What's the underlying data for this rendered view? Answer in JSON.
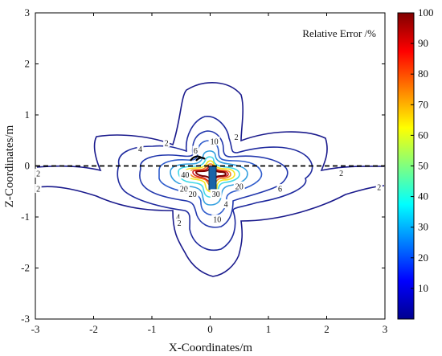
{
  "chart_data": {
    "type": "contour",
    "annotation": "Relative Error /%",
    "xlabel": "X-Coordinates/m",
    "ylabel": "Z-Coordinates/m",
    "xlim": [
      -3,
      3
    ],
    "ylim": [
      -3,
      3
    ],
    "xticks": [
      "-3",
      "-2",
      "-1",
      "0",
      "1",
      "2",
      "3"
    ],
    "yticks": [
      "3",
      "2",
      "1",
      "0",
      "-1",
      "-2",
      "-3"
    ],
    "colorbar": {
      "range": [
        0,
        100
      ],
      "ticks": [
        "100",
        "90",
        "80",
        "70",
        "60",
        "50",
        "40",
        "30",
        "20",
        "10"
      ]
    },
    "contour_levels": [
      {
        "level": 2,
        "color": "#1a1a8c"
      },
      {
        "level": 4,
        "color": "#1f2a9e"
      },
      {
        "level": 6,
        "color": "#2338ad"
      },
      {
        "level": 10,
        "color": "#2f5ccc"
      },
      {
        "level": 20,
        "color": "#35a0e0"
      },
      {
        "level": 30,
        "color": "#40d8e8"
      },
      {
        "level": 40,
        "color": "#f2e620"
      },
      {
        "level": 60,
        "color": "#f28a1a"
      },
      {
        "level": 80,
        "color": "#d61e1e"
      },
      {
        "level": 100,
        "color": "#7a0000"
      }
    ],
    "contour_labels": [
      {
        "text": "2",
        "x": -2.95,
        "z": -0.15
      },
      {
        "text": "2",
        "x": -2.95,
        "z": -0.45
      },
      {
        "text": "2",
        "x": -0.75,
        "z": 0.45
      },
      {
        "text": "2",
        "x": 0.45,
        "z": 0.57
      },
      {
        "text": "4",
        "x": -1.2,
        "z": 0.33
      },
      {
        "text": "10",
        "x": 0.07,
        "z": 0.48
      },
      {
        "text": "6",
        "x": -0.25,
        "z": 0.3
      },
      {
        "text": "2",
        "x": 2.25,
        "z": -0.14
      },
      {
        "text": "2",
        "x": 2.9,
        "z": -0.42
      },
      {
        "text": "6",
        "x": 1.2,
        "z": -0.45
      },
      {
        "text": "20",
        "x": 0.5,
        "z": -0.4
      },
      {
        "text": "40",
        "x": -0.43,
        "z": -0.17
      },
      {
        "text": "20",
        "x": -0.45,
        "z": -0.45
      },
      {
        "text": "20",
        "x": -0.3,
        "z": -0.55
      },
      {
        "text": "30",
        "x": 0.1,
        "z": -0.55
      },
      {
        "text": "4",
        "x": 0.27,
        "z": -0.75
      },
      {
        "text": "4",
        "x": -0.55,
        "z": -1.0
      },
      {
        "text": "2",
        "x": -0.53,
        "z": -1.12
      },
      {
        "text": "10",
        "x": 0.12,
        "z": -1.05
      }
    ],
    "reference_line": {
      "z": 0,
      "style": "dashed",
      "color": "#000000"
    },
    "grid": false
  }
}
